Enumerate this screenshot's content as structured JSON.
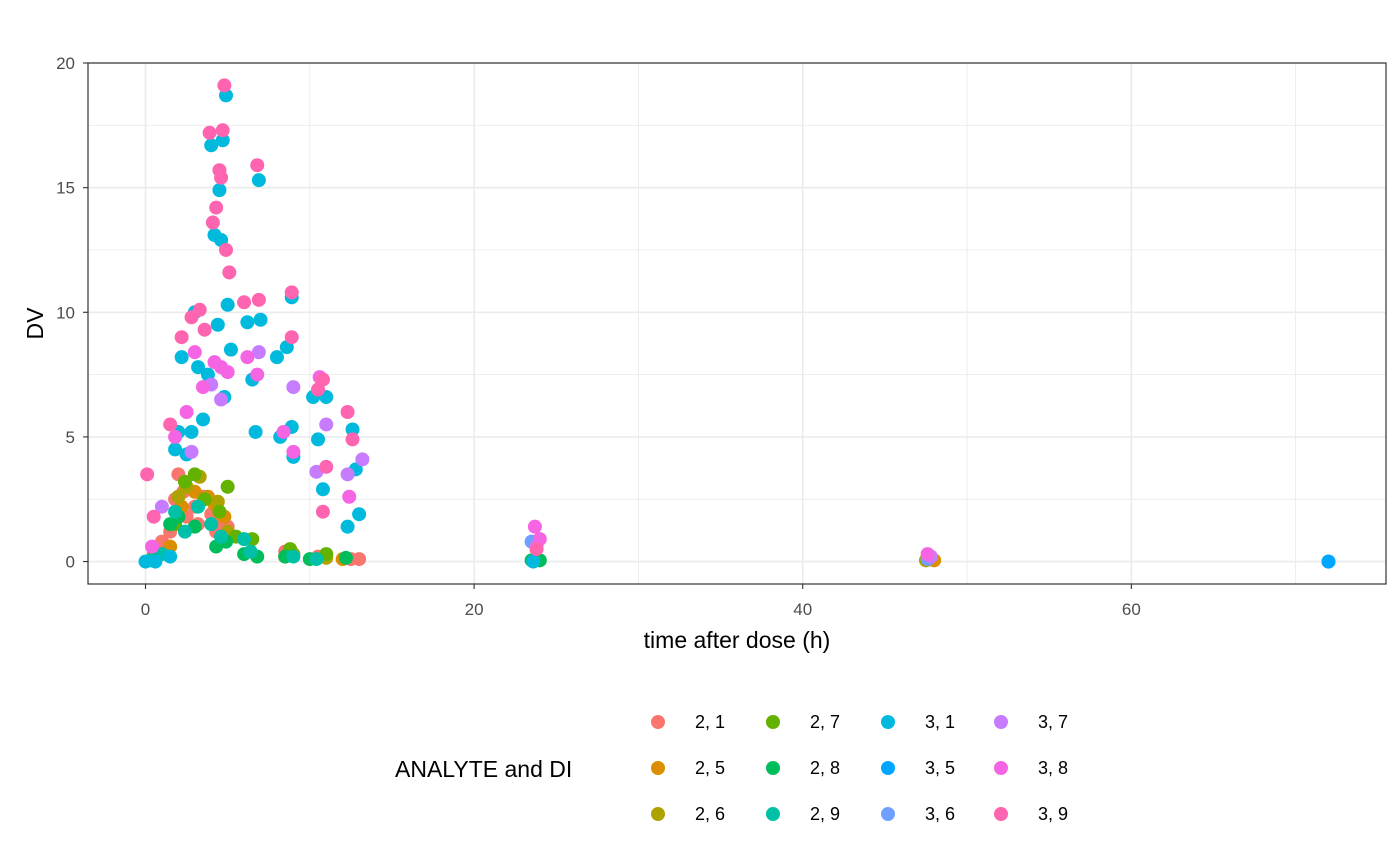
{
  "chart_data": {
    "type": "scatter",
    "xlabel": "time after dose (h)",
    "ylabel": "DV",
    "xlim": [
      -3.5,
      75.5
    ],
    "ylim": [
      -0.9,
      20
    ],
    "x_ticks": [
      0,
      20,
      40,
      60
    ],
    "y_ticks": [
      0,
      5,
      10,
      15,
      20
    ],
    "grid": true,
    "legend": {
      "title": "ANALYTE and DI",
      "position": "bottom",
      "entries": [
        {
          "label": "2, 1",
          "color": "#F8766D"
        },
        {
          "label": "2, 5",
          "color": "#DB8E00"
        },
        {
          "label": "2, 6",
          "color": "#AEA200"
        },
        {
          "label": "2, 7",
          "color": "#64B200"
        },
        {
          "label": "2, 8",
          "color": "#00BD5C"
        },
        {
          "label": "2, 9",
          "color": "#00C1A7"
        },
        {
          "label": "3, 1",
          "color": "#00BADE"
        },
        {
          "label": "3, 5",
          "color": "#00A6FF"
        },
        {
          "label": "3, 6",
          "color": "#6F9FFF"
        },
        {
          "label": "3, 7",
          "color": "#C77CFF"
        },
        {
          "label": "3, 8",
          "color": "#F564E3"
        },
        {
          "label": "3, 9",
          "color": "#FF64B0"
        }
      ]
    },
    "series": [
      {
        "name": "2, 1",
        "color": "#F8766D",
        "points": [
          [
            0.5,
            0.3
          ],
          [
            1,
            0.8
          ],
          [
            1.5,
            1.2
          ],
          [
            1.8,
            2.5
          ],
          [
            2,
            3.5
          ],
          [
            2.3,
            2.8
          ],
          [
            2.5,
            1.8
          ],
          [
            3,
            2.2
          ],
          [
            3.2,
            1.5
          ],
          [
            3.5,
            2.6
          ],
          [
            4,
            1.9
          ],
          [
            4.3,
            1.2
          ],
          [
            4.5,
            1.6
          ],
          [
            5,
            1.4
          ],
          [
            8.5,
            0.4
          ],
          [
            10.5,
            0.2
          ],
          [
            12.5,
            0.1
          ],
          [
            13,
            0.1
          ]
        ]
      },
      {
        "name": "2, 5",
        "color": "#DB8E00",
        "points": [
          [
            1.5,
            0.6
          ],
          [
            2.2,
            2.2
          ],
          [
            3,
            2.8
          ],
          [
            3.8,
            2.6
          ],
          [
            4.2,
            2.3
          ],
          [
            4.8,
            1.8
          ],
          [
            8.5,
            0.2
          ],
          [
            12,
            0.1
          ],
          [
            48,
            0.05
          ]
        ]
      },
      {
        "name": "2, 6",
        "color": "#AEA200",
        "points": [
          [
            2,
            2.6
          ],
          [
            2.5,
            3.0
          ],
          [
            3.3,
            3.4
          ],
          [
            4.4,
            2.4
          ],
          [
            5,
            1.2
          ],
          [
            9,
            0.3
          ],
          [
            11,
            0.15
          ],
          [
            47.5,
            0.05
          ]
        ]
      },
      {
        "name": "2, 7",
        "color": "#64B200",
        "points": [
          [
            1.8,
            1.5
          ],
          [
            2.4,
            3.2
          ],
          [
            3,
            3.5
          ],
          [
            3.6,
            2.5
          ],
          [
            4.5,
            2.0
          ],
          [
            5,
            3.0
          ],
          [
            5.5,
            1.0
          ],
          [
            6.5,
            0.9
          ],
          [
            8.8,
            0.5
          ],
          [
            11,
            0.3
          ]
        ]
      },
      {
        "name": "2, 8",
        "color": "#00BD5C",
        "points": [
          [
            0.5,
            0.1
          ],
          [
            1.5,
            1.5
          ],
          [
            2,
            1.8
          ],
          [
            3,
            1.4
          ],
          [
            4.3,
            0.6
          ],
          [
            4.9,
            0.8
          ],
          [
            6,
            0.3
          ],
          [
            6.8,
            0.2
          ],
          [
            8.5,
            0.2
          ],
          [
            10,
            0.1
          ],
          [
            12.2,
            0.15
          ],
          [
            23.5,
            0.05
          ],
          [
            24,
            0.05
          ]
        ]
      },
      {
        "name": "2, 9",
        "color": "#00C1A7",
        "points": [
          [
            0.3,
            0.05
          ],
          [
            1,
            0.3
          ],
          [
            1.8,
            2.0
          ],
          [
            2.4,
            1.2
          ],
          [
            3.2,
            2.2
          ],
          [
            4,
            1.5
          ],
          [
            4.6,
            1.0
          ],
          [
            6,
            0.9
          ],
          [
            6.4,
            0.4
          ],
          [
            9,
            0.2
          ],
          [
            10.4,
            0.1
          ]
        ]
      },
      {
        "name": "3, 1",
        "color": "#00BADE",
        "points": [
          [
            0,
            0.0
          ],
          [
            0.6,
            0.0
          ],
          [
            1.5,
            0.2
          ],
          [
            1.8,
            4.5
          ],
          [
            2,
            5.2
          ],
          [
            2.2,
            8.2
          ],
          [
            2.5,
            4.3
          ],
          [
            2.8,
            5.2
          ],
          [
            3,
            10.0
          ],
          [
            3.2,
            7.8
          ],
          [
            3.5,
            5.7
          ],
          [
            3.8,
            7.5
          ],
          [
            4,
            16.7
          ],
          [
            4.2,
            13.1
          ],
          [
            4.4,
            9.5
          ],
          [
            4.5,
            14.9
          ],
          [
            4.6,
            12.9
          ],
          [
            4.7,
            16.9
          ],
          [
            4.8,
            6.6
          ],
          [
            4.9,
            18.7
          ],
          [
            5,
            10.3
          ],
          [
            5.2,
            8.5
          ],
          [
            6.2,
            9.6
          ],
          [
            6.5,
            7.3
          ],
          [
            6.7,
            5.2
          ],
          [
            6.9,
            15.3
          ],
          [
            7.0,
            9.7
          ],
          [
            8,
            8.2
          ],
          [
            8.2,
            5.0
          ],
          [
            8.6,
            8.6
          ],
          [
            8.9,
            5.4
          ],
          [
            8.9,
            10.6
          ],
          [
            9,
            4.2
          ],
          [
            10.2,
            6.6
          ],
          [
            10.5,
            4.9
          ],
          [
            10.8,
            2.9
          ],
          [
            11,
            6.6
          ],
          [
            12.3,
            1.4
          ],
          [
            12.6,
            5.3
          ],
          [
            12.8,
            3.7
          ],
          [
            13,
            1.9
          ],
          [
            23.6,
            0.0
          ],
          [
            72,
            0.0
          ]
        ]
      },
      {
        "name": "3, 5",
        "color": "#00A6FF",
        "points": [
          [
            72,
            0.0
          ]
        ]
      },
      {
        "name": "3, 6",
        "color": "#6F9FFF",
        "points": [
          [
            23.5,
            0.8
          ],
          [
            47.6,
            0.1
          ]
        ]
      },
      {
        "name": "3, 7",
        "color": "#C77CFF",
        "points": [
          [
            1,
            2.2
          ],
          [
            2.8,
            4.4
          ],
          [
            4,
            7.1
          ],
          [
            4.6,
            6.5
          ],
          [
            6.9,
            8.4
          ],
          [
            9,
            7.0
          ],
          [
            10.4,
            3.6
          ],
          [
            11,
            5.5
          ],
          [
            12.3,
            3.5
          ],
          [
            13.2,
            4.1
          ],
          [
            23.8,
            0.6
          ],
          [
            47.8,
            0.2
          ]
        ]
      },
      {
        "name": "3, 8",
        "color": "#F564E3",
        "points": [
          [
            0.4,
            0.6
          ],
          [
            1.8,
            5.0
          ],
          [
            2.5,
            6.0
          ],
          [
            3,
            8.4
          ],
          [
            3.5,
            7.0
          ],
          [
            4.2,
            8.0
          ],
          [
            4.6,
            7.8
          ],
          [
            5,
            7.6
          ],
          [
            6.2,
            8.2
          ],
          [
            6.8,
            7.5
          ],
          [
            8.4,
            5.2
          ],
          [
            9,
            4.4
          ],
          [
            10.6,
            7.4
          ],
          [
            12.4,
            2.6
          ],
          [
            23.7,
            1.4
          ],
          [
            24,
            0.9
          ],
          [
            47.6,
            0.3
          ]
        ]
      },
      {
        "name": "3, 9",
        "color": "#FF64B0",
        "points": [
          [
            0.1,
            3.5
          ],
          [
            0.5,
            1.8
          ],
          [
            1.5,
            5.5
          ],
          [
            2.2,
            9.0
          ],
          [
            2.8,
            9.8
          ],
          [
            3.3,
            10.1
          ],
          [
            3.6,
            9.3
          ],
          [
            3.9,
            17.2
          ],
          [
            4.1,
            13.6
          ],
          [
            4.3,
            14.2
          ],
          [
            4.5,
            15.7
          ],
          [
            4.6,
            15.4
          ],
          [
            4.7,
            17.3
          ],
          [
            4.8,
            19.1
          ],
          [
            4.9,
            12.5
          ],
          [
            5.1,
            11.6
          ],
          [
            6,
            10.4
          ],
          [
            6.8,
            15.9
          ],
          [
            6.9,
            10.5
          ],
          [
            8.9,
            9.0
          ],
          [
            8.9,
            10.8
          ],
          [
            10.5,
            6.9
          ],
          [
            10.8,
            7.3
          ],
          [
            10.8,
            2.0
          ],
          [
            11,
            3.8
          ],
          [
            12.3,
            6.0
          ],
          [
            12.6,
            4.9
          ],
          [
            23.8,
            0.5
          ]
        ]
      }
    ]
  }
}
